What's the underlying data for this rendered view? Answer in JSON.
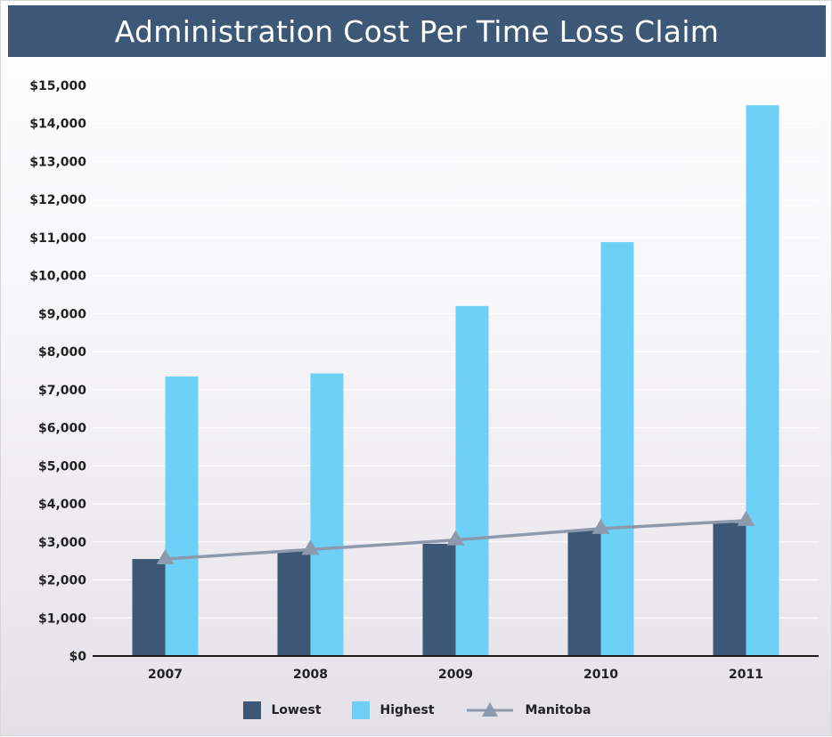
{
  "title": "Administration Cost Per Time Loss Claim",
  "chart_data": {
    "type": "bar",
    "title": "Administration Cost Per Time Loss Claim",
    "categories": [
      "2007",
      "2008",
      "2009",
      "2010",
      "2011"
    ],
    "series": [
      {
        "name": "Lowest",
        "kind": "bar",
        "color": "#3d5877",
        "values": [
          2550,
          2750,
          2950,
          3300,
          3500
        ]
      },
      {
        "name": "Highest",
        "kind": "bar",
        "color": "#6dd0f6",
        "values": [
          7350,
          7430,
          9200,
          10880,
          14480
        ]
      },
      {
        "name": "Manitoba",
        "kind": "line",
        "color": "#8d9aae",
        "marker": "triangle",
        "values": [
          2550,
          2800,
          3050,
          3350,
          3560
        ]
      }
    ],
    "ylim": [
      0,
      15000
    ],
    "yticks": [
      "$0",
      "$1,000",
      "$2,000",
      "$3,000",
      "$4,000",
      "$5,000",
      "$6,000",
      "$7,000",
      "$8,000",
      "$9,000",
      "$10,000",
      "$11,000",
      "$12,000",
      "$13,000",
      "$14,000",
      "$15,000"
    ],
    "xlabel": "",
    "ylabel": "",
    "grid": true,
    "legend_position": "bottom"
  }
}
